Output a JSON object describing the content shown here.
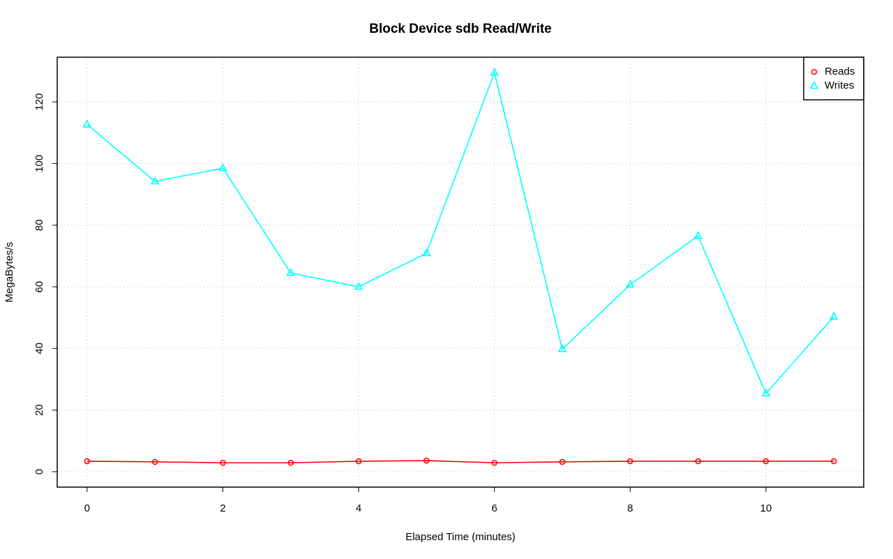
{
  "chart_data": {
    "type": "line",
    "title": "Block Device sdb Read/Write",
    "x_label": "Elapsed Time (minutes)",
    "y_label": "MegaBytes/s",
    "x": [
      0,
      1,
      2,
      3,
      4,
      5,
      6,
      7,
      8,
      9,
      10,
      11
    ],
    "series": [
      {
        "name": "Reads",
        "color": "#ff0000",
        "marker": "circle",
        "values": [
          3.4,
          3.2,
          2.9,
          2.9,
          3.4,
          3.6,
          2.9,
          3.2,
          3.4,
          3.4,
          3.4,
          3.4
        ]
      },
      {
        "name": "Writes",
        "color": "#00ffff",
        "marker": "triangle",
        "values": [
          112.7,
          94.2,
          98.5,
          64.5,
          60,
          70.9,
          129.5,
          39.8,
          60.7,
          76.5,
          25.4,
          50.3
        ]
      }
    ],
    "xlim": [
      -0.44,
      11.44
    ],
    "xticks": [
      0,
      2,
      4,
      6,
      8,
      10
    ],
    "ylim": [
      -5,
      134.5
    ],
    "yticks": [
      0,
      20,
      40,
      60,
      80,
      100,
      120
    ],
    "grid": true,
    "legend_position": "top-right"
  }
}
